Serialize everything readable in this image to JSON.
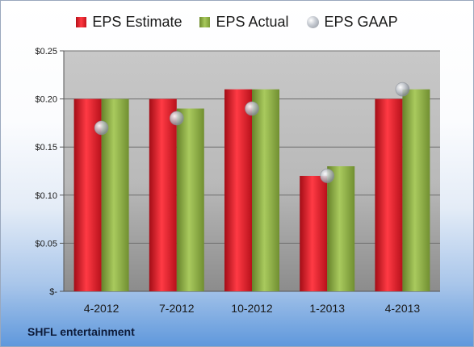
{
  "company": "SHFL entertainment",
  "colors": {
    "estimate": "#d4141f",
    "actual": "#8fb04a",
    "gaap": "#b8bcc3"
  },
  "chart_data": {
    "type": "bar",
    "categories": [
      "4-2012",
      "7-2012",
      "10-2012",
      "1-2013",
      "4-2013"
    ],
    "series": [
      {
        "name": "EPS Estimate",
        "values": [
          0.2,
          0.2,
          0.21,
          0.12,
          0.2
        ]
      },
      {
        "name": "EPS Actual",
        "values": [
          0.2,
          0.19,
          0.21,
          0.13,
          0.21
        ]
      },
      {
        "name": "EPS GAAP",
        "values": [
          0.17,
          0.18,
          0.19,
          0.12,
          0.21
        ],
        "marker": "circle"
      }
    ],
    "ylim": [
      0,
      0.25
    ],
    "yticks": [
      0,
      0.05,
      0.1,
      0.15,
      0.2,
      0.25
    ],
    "ytick_labels": [
      "$-",
      "$0.05",
      "$0.10",
      "$0.15",
      "$0.20",
      "$0.25"
    ],
    "grid": true,
    "legend": "top"
  }
}
